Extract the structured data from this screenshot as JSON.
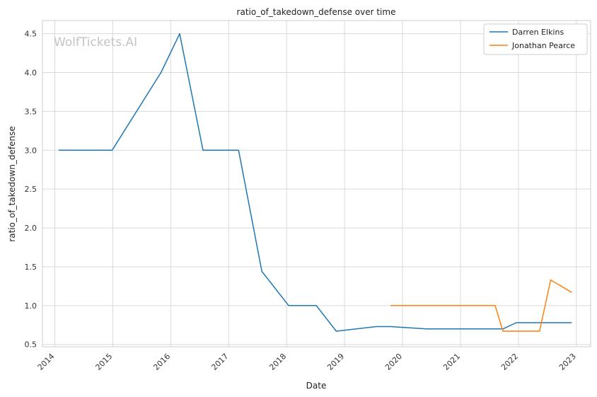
{
  "chart_data": {
    "type": "line",
    "title": "ratio_of_takedown_defense over time",
    "xlabel": "Date",
    "ylabel": "ratio_of_takedown_defense",
    "watermark": "WolfTickets.AI",
    "x_ticks": [
      "2014",
      "2015",
      "2016",
      "2017",
      "2018",
      "2019",
      "2020",
      "2021",
      "2022",
      "2023"
    ],
    "y_ticks": [
      "0.5",
      "1.0",
      "1.5",
      "2.0",
      "2.5",
      "3.0",
      "3.5",
      "4.0",
      "4.5"
    ],
    "xlim": [
      "2013-10-15",
      "2023-04-01"
    ],
    "ylim": [
      0.47,
      4.67
    ],
    "grid": true,
    "legend_position": "top-right",
    "series": [
      {
        "name": "Darren Elkins",
        "color": "#1f77b4",
        "points": [
          {
            "x": "2014-01-25",
            "y": 3.0
          },
          {
            "x": "2014-12-28",
            "y": 3.0
          },
          {
            "x": "2015-11-01",
            "y": 4.0
          },
          {
            "x": "2016-02-27",
            "y": 4.5
          },
          {
            "x": "2016-07-23",
            "y": 3.0
          },
          {
            "x": "2017-03-04",
            "y": 3.0
          },
          {
            "x": "2017-07-29",
            "y": 1.44
          },
          {
            "x": "2018-01-14",
            "y": 1.0
          },
          {
            "x": "2018-07-07",
            "y": 1.0
          },
          {
            "x": "2018-11-10",
            "y": 0.67
          },
          {
            "x": "2019-07-20",
            "y": 0.73
          },
          {
            "x": "2019-10-18",
            "y": 0.73
          },
          {
            "x": "2020-05-30",
            "y": 0.7
          },
          {
            "x": "2021-09-25",
            "y": 0.7
          },
          {
            "x": "2021-12-18",
            "y": 0.78
          },
          {
            "x": "2022-12-03",
            "y": 0.78
          }
        ]
      },
      {
        "name": "Jonathan Pearce",
        "color": "#ff7f0e",
        "points": [
          {
            "x": "2019-10-18",
            "y": 1.0
          },
          {
            "x": "2021-08-07",
            "y": 1.0
          },
          {
            "x": "2021-09-25",
            "y": 0.67
          },
          {
            "x": "2022-05-14",
            "y": 0.67
          },
          {
            "x": "2022-07-23",
            "y": 1.33
          },
          {
            "x": "2022-12-03",
            "y": 1.17
          }
        ]
      }
    ]
  }
}
